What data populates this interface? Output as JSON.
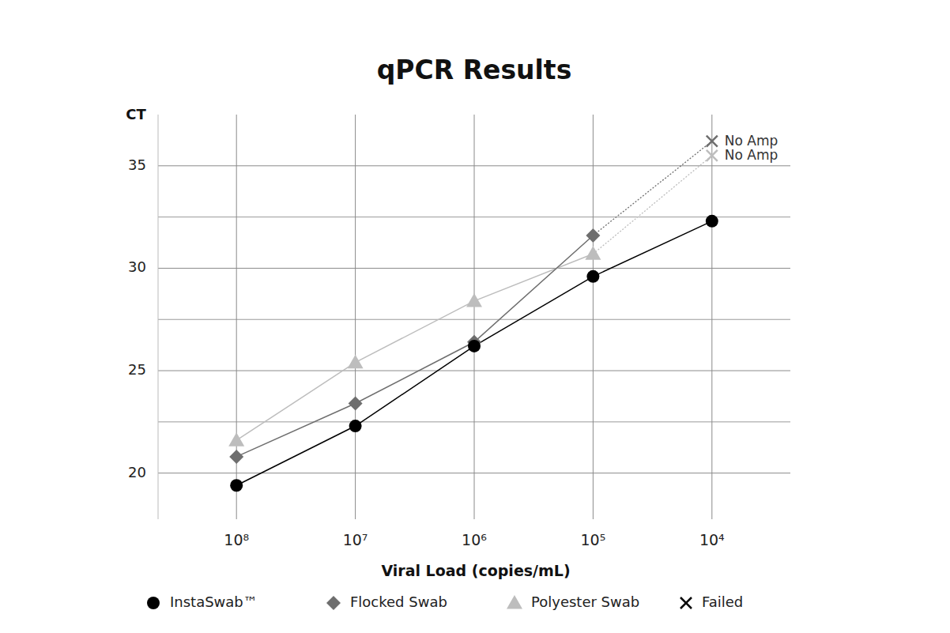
{
  "chart_data": {
    "type": "line",
    "title": "qPCR Results",
    "y_label": "CT",
    "x_label": "Viral Load (copies/mL)",
    "categories": [
      "10⁸",
      "10⁷",
      "10⁶",
      "10⁵",
      "10⁴"
    ],
    "ylim": [
      17.75,
      37.5
    ],
    "yticks": [
      20,
      25,
      30,
      35
    ],
    "grid": true,
    "legend": "bottom",
    "failed_legend": "Failed",
    "series": [
      {
        "name": "InstaSwab™",
        "color": "#000000",
        "marker": "circle",
        "values": [
          19.4,
          22.3,
          26.2,
          29.6,
          32.3
        ]
      },
      {
        "name": "Flocked Swab",
        "color": "#6e6e6e",
        "marker": "diamond",
        "values": [
          20.8,
          23.4,
          26.4,
          31.6,
          null
        ],
        "failed_values": [
          null,
          null,
          null,
          null,
          36.2
        ],
        "failed_label": "No Amp"
      },
      {
        "name": "Polyester Swab",
        "color": "#bdbdbd",
        "marker": "triangle",
        "values": [
          21.6,
          25.4,
          28.4,
          30.7,
          null
        ],
        "failed_values": [
          null,
          null,
          null,
          null,
          35.5
        ],
        "failed_label": "No Amp"
      }
    ]
  }
}
